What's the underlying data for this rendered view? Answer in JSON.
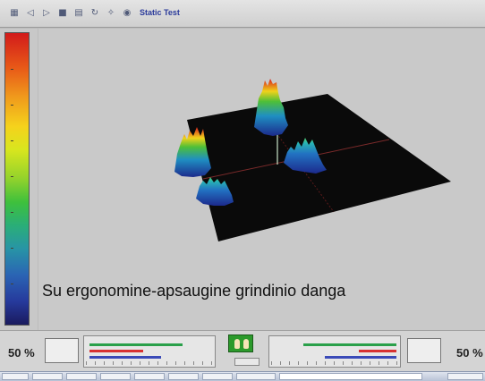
{
  "toolbar": {
    "title": "Static Test",
    "icons": [
      "grid-icon",
      "back-icon",
      "forward-icon",
      "save-icon",
      "print-icon",
      "rotate-icon",
      "settings-icon",
      "camera-icon"
    ]
  },
  "scale": {
    "colors": [
      "#d21a1a",
      "#f09a1c",
      "#f5d21c",
      "#92d22c",
      "#3ec03c",
      "#2894a6",
      "#263a9c",
      "#1a1a5e"
    ]
  },
  "plot": {
    "caption": "Su ergonomine-apsaugine grindinio danga",
    "surface_color": "#0a0a0a",
    "background_color": "#c9c9c9"
  },
  "bottom": {
    "left_percent": "50 %",
    "right_percent": "50 %",
    "accent_green": "#2c9a2c",
    "bar_colors": [
      "#2aa04a",
      "#d83232",
      "#3a4ab8"
    ]
  }
}
